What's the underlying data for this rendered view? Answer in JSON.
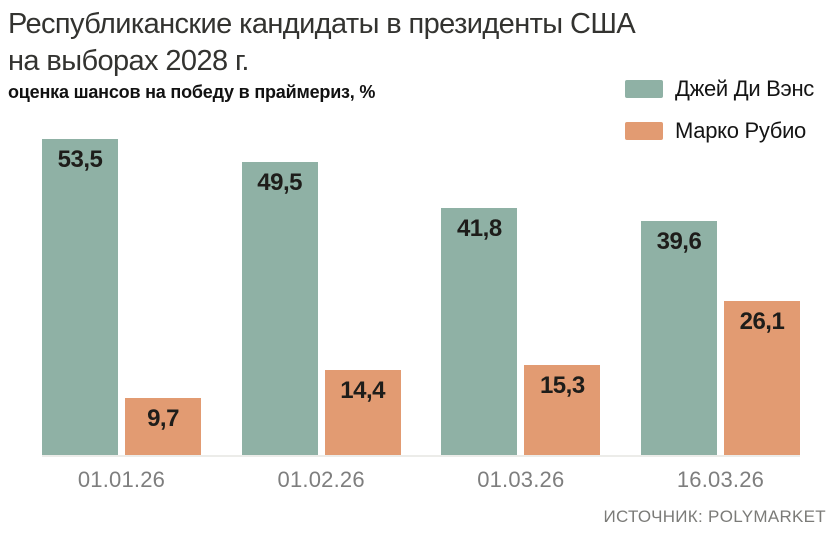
{
  "header": {
    "title_line1": "Республиканские кандидаты в президенты США",
    "title_line2": "на выборах 2028 г.",
    "subtitle": "оценка шансов на победу в праймериз, %"
  },
  "legend": [
    {
      "label": "Джей Ди Вэнс",
      "color": "#8fb1a5"
    },
    {
      "label": "Марко Рубио",
      "color": "#e29b72"
    }
  ],
  "source": "ИСТОЧНИК: POLYMARKET",
  "chart_data": {
    "type": "bar",
    "title": "Республиканские кандидаты в президенты США на выборах 2028 г.",
    "subtitle": "оценка шансов на победу в праймериз, %",
    "categories": [
      "01.01.26",
      "01.02.26",
      "01.03.26",
      "16.03.26"
    ],
    "series": [
      {
        "name": "Джей Ди Вэнс",
        "color": "#8fb1a5",
        "values": [
          53.5,
          49.5,
          41.8,
          39.6
        ]
      },
      {
        "name": "Марко Рубио",
        "color": "#e29b72",
        "values": [
          9.7,
          14.4,
          15.3,
          26.1
        ]
      }
    ],
    "value_label_format": "decimal-comma",
    "xlabel": "",
    "ylabel": "оценка шансов на победу в праймериз, %",
    "ylim": [
      0,
      57
    ],
    "grid": false,
    "axis_ticks_visible": false,
    "legend_position": "top-right",
    "source": "ИСТОЧНИК: POLYMARKET"
  }
}
